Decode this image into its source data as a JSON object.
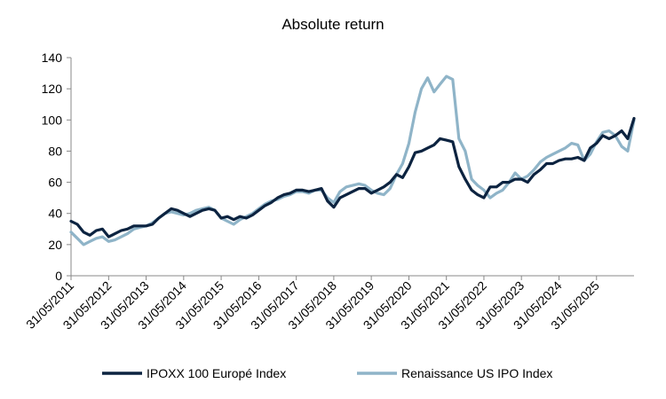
{
  "chart_data": {
    "type": "line",
    "title": "Absolute return",
    "xlabel": "",
    "ylabel": "",
    "ylim": [
      0,
      140
    ],
    "yticks": [
      0,
      20,
      40,
      60,
      80,
      100,
      120,
      140
    ],
    "xlim": [
      "2011-05-31",
      "2026-05-31"
    ],
    "xticks": [
      "31/05/2011",
      "31/05/2012",
      "31/05/2013",
      "31/05/2014",
      "31/05/2015",
      "31/05/2016",
      "31/05/2017",
      "31/05/2018",
      "31/05/2019",
      "31/05/2020",
      "31/05/2021",
      "31/05/2022",
      "31/05/2023",
      "31/05/2024",
      "31/05/2025"
    ],
    "grid": false,
    "legend_position": "bottom",
    "series": [
      {
        "name": "IPOXX 100 Europé Index",
        "color": "#0c2340",
        "x": [
          "2011-05-31",
          "2011-07-31",
          "2011-09-30",
          "2011-11-30",
          "2012-01-31",
          "2012-03-31",
          "2012-05-31",
          "2012-07-31",
          "2012-09-30",
          "2012-11-30",
          "2013-01-31",
          "2013-03-31",
          "2013-05-31",
          "2013-07-31",
          "2013-09-30",
          "2013-11-30",
          "2014-01-31",
          "2014-03-31",
          "2014-05-31",
          "2014-07-31",
          "2014-09-30",
          "2014-11-30",
          "2015-01-31",
          "2015-03-31",
          "2015-05-31",
          "2015-07-31",
          "2015-09-30",
          "2015-11-30",
          "2016-01-31",
          "2016-03-31",
          "2016-05-31",
          "2016-07-31",
          "2016-09-30",
          "2016-11-30",
          "2017-01-31",
          "2017-03-31",
          "2017-05-31",
          "2017-07-31",
          "2017-09-30",
          "2017-11-30",
          "2018-01-31",
          "2018-03-31",
          "2018-05-31",
          "2018-07-31",
          "2018-09-30",
          "2018-11-30",
          "2019-01-31",
          "2019-03-31",
          "2019-05-31",
          "2019-07-31",
          "2019-09-30",
          "2019-11-30",
          "2020-01-31",
          "2020-03-31",
          "2020-05-31",
          "2020-07-31",
          "2020-09-30",
          "2020-11-30",
          "2021-01-31",
          "2021-03-31",
          "2021-05-31",
          "2021-07-31",
          "2021-09-30",
          "2021-11-30",
          "2022-01-31",
          "2022-03-31",
          "2022-05-31",
          "2022-07-31",
          "2022-09-30",
          "2022-11-30",
          "2023-01-31",
          "2023-03-31",
          "2023-05-31",
          "2023-07-31",
          "2023-09-30",
          "2023-11-30",
          "2024-01-31",
          "2024-03-31",
          "2024-05-31",
          "2024-07-31",
          "2024-09-30",
          "2024-11-30",
          "2025-01-31",
          "2025-03-31",
          "2025-05-31",
          "2025-07-31",
          "2025-09-30",
          "2025-11-30",
          "2026-01-31",
          "2026-03-31",
          "2026-05-31"
        ],
        "values": [
          35,
          33,
          28,
          26,
          29,
          30,
          25,
          27,
          29,
          30,
          32,
          32,
          32,
          33,
          37,
          40,
          43,
          42,
          40,
          38,
          40,
          42,
          43,
          42,
          37,
          38,
          36,
          38,
          37,
          39,
          42,
          45,
          47,
          50,
          52,
          53,
          55,
          55,
          54,
          55,
          56,
          48,
          44,
          50,
          52,
          54,
          56,
          56,
          53,
          55,
          57,
          60,
          65,
          63,
          70,
          79,
          80,
          82,
          84,
          88,
          87,
          86,
          70,
          62,
          55,
          52,
          50,
          57,
          57,
          60,
          60,
          62,
          62,
          60,
          65,
          68,
          72,
          72,
          74,
          75,
          75,
          76,
          74,
          82,
          85,
          90,
          88,
          90,
          93,
          88,
          101
        ]
      },
      {
        "name": "Renaissance US IPO Index",
        "color": "#8fb4c8",
        "x": [
          "2011-05-31",
          "2011-07-31",
          "2011-09-30",
          "2011-11-30",
          "2012-01-31",
          "2012-03-31",
          "2012-05-31",
          "2012-07-31",
          "2012-09-30",
          "2012-11-30",
          "2013-01-31",
          "2013-03-31",
          "2013-05-31",
          "2013-07-31",
          "2013-09-30",
          "2013-11-30",
          "2014-01-31",
          "2014-03-31",
          "2014-05-31",
          "2014-07-31",
          "2014-09-30",
          "2014-11-30",
          "2015-01-31",
          "2015-03-31",
          "2015-05-31",
          "2015-07-31",
          "2015-09-30",
          "2015-11-30",
          "2016-01-31",
          "2016-03-31",
          "2016-05-31",
          "2016-07-31",
          "2016-09-30",
          "2016-11-30",
          "2017-01-31",
          "2017-03-31",
          "2017-05-31",
          "2017-07-31",
          "2017-09-30",
          "2017-11-30",
          "2018-01-31",
          "2018-03-31",
          "2018-05-31",
          "2018-07-31",
          "2018-09-30",
          "2018-11-30",
          "2019-01-31",
          "2019-03-31",
          "2019-05-31",
          "2019-07-31",
          "2019-09-30",
          "2019-11-30",
          "2020-01-31",
          "2020-03-31",
          "2020-05-31",
          "2020-07-31",
          "2020-09-30",
          "2020-11-30",
          "2021-01-31",
          "2021-03-31",
          "2021-05-31",
          "2021-07-31",
          "2021-09-30",
          "2021-11-30",
          "2022-01-31",
          "2022-03-31",
          "2022-05-31",
          "2022-07-31",
          "2022-09-30",
          "2022-11-30",
          "2023-01-31",
          "2023-03-31",
          "2023-05-31",
          "2023-07-31",
          "2023-09-30",
          "2023-11-30",
          "2024-01-31",
          "2024-03-31",
          "2024-05-31",
          "2024-07-31",
          "2024-09-30",
          "2024-11-30",
          "2025-01-31",
          "2025-03-31",
          "2025-05-31",
          "2025-07-31",
          "2025-09-30",
          "2025-11-30",
          "2026-01-31",
          "2026-03-31",
          "2026-05-31"
        ],
        "values": [
          28,
          24,
          20,
          22,
          24,
          25,
          22,
          23,
          25,
          27,
          30,
          31,
          32,
          34,
          37,
          40,
          41,
          40,
          39,
          40,
          42,
          43,
          44,
          42,
          37,
          35,
          33,
          36,
          38,
          40,
          43,
          46,
          48,
          49,
          51,
          52,
          54,
          54,
          53,
          55,
          55,
          50,
          47,
          54,
          57,
          58,
          59,
          58,
          55,
          53,
          52,
          56,
          65,
          72,
          85,
          105,
          120,
          127,
          118,
          123,
          128,
          126,
          88,
          80,
          62,
          58,
          55,
          50,
          53,
          55,
          60,
          66,
          62,
          64,
          68,
          73,
          76,
          78,
          80,
          82,
          85,
          84,
          74,
          78,
          86,
          92,
          93,
          90,
          83,
          80,
          100
        ]
      }
    ]
  }
}
